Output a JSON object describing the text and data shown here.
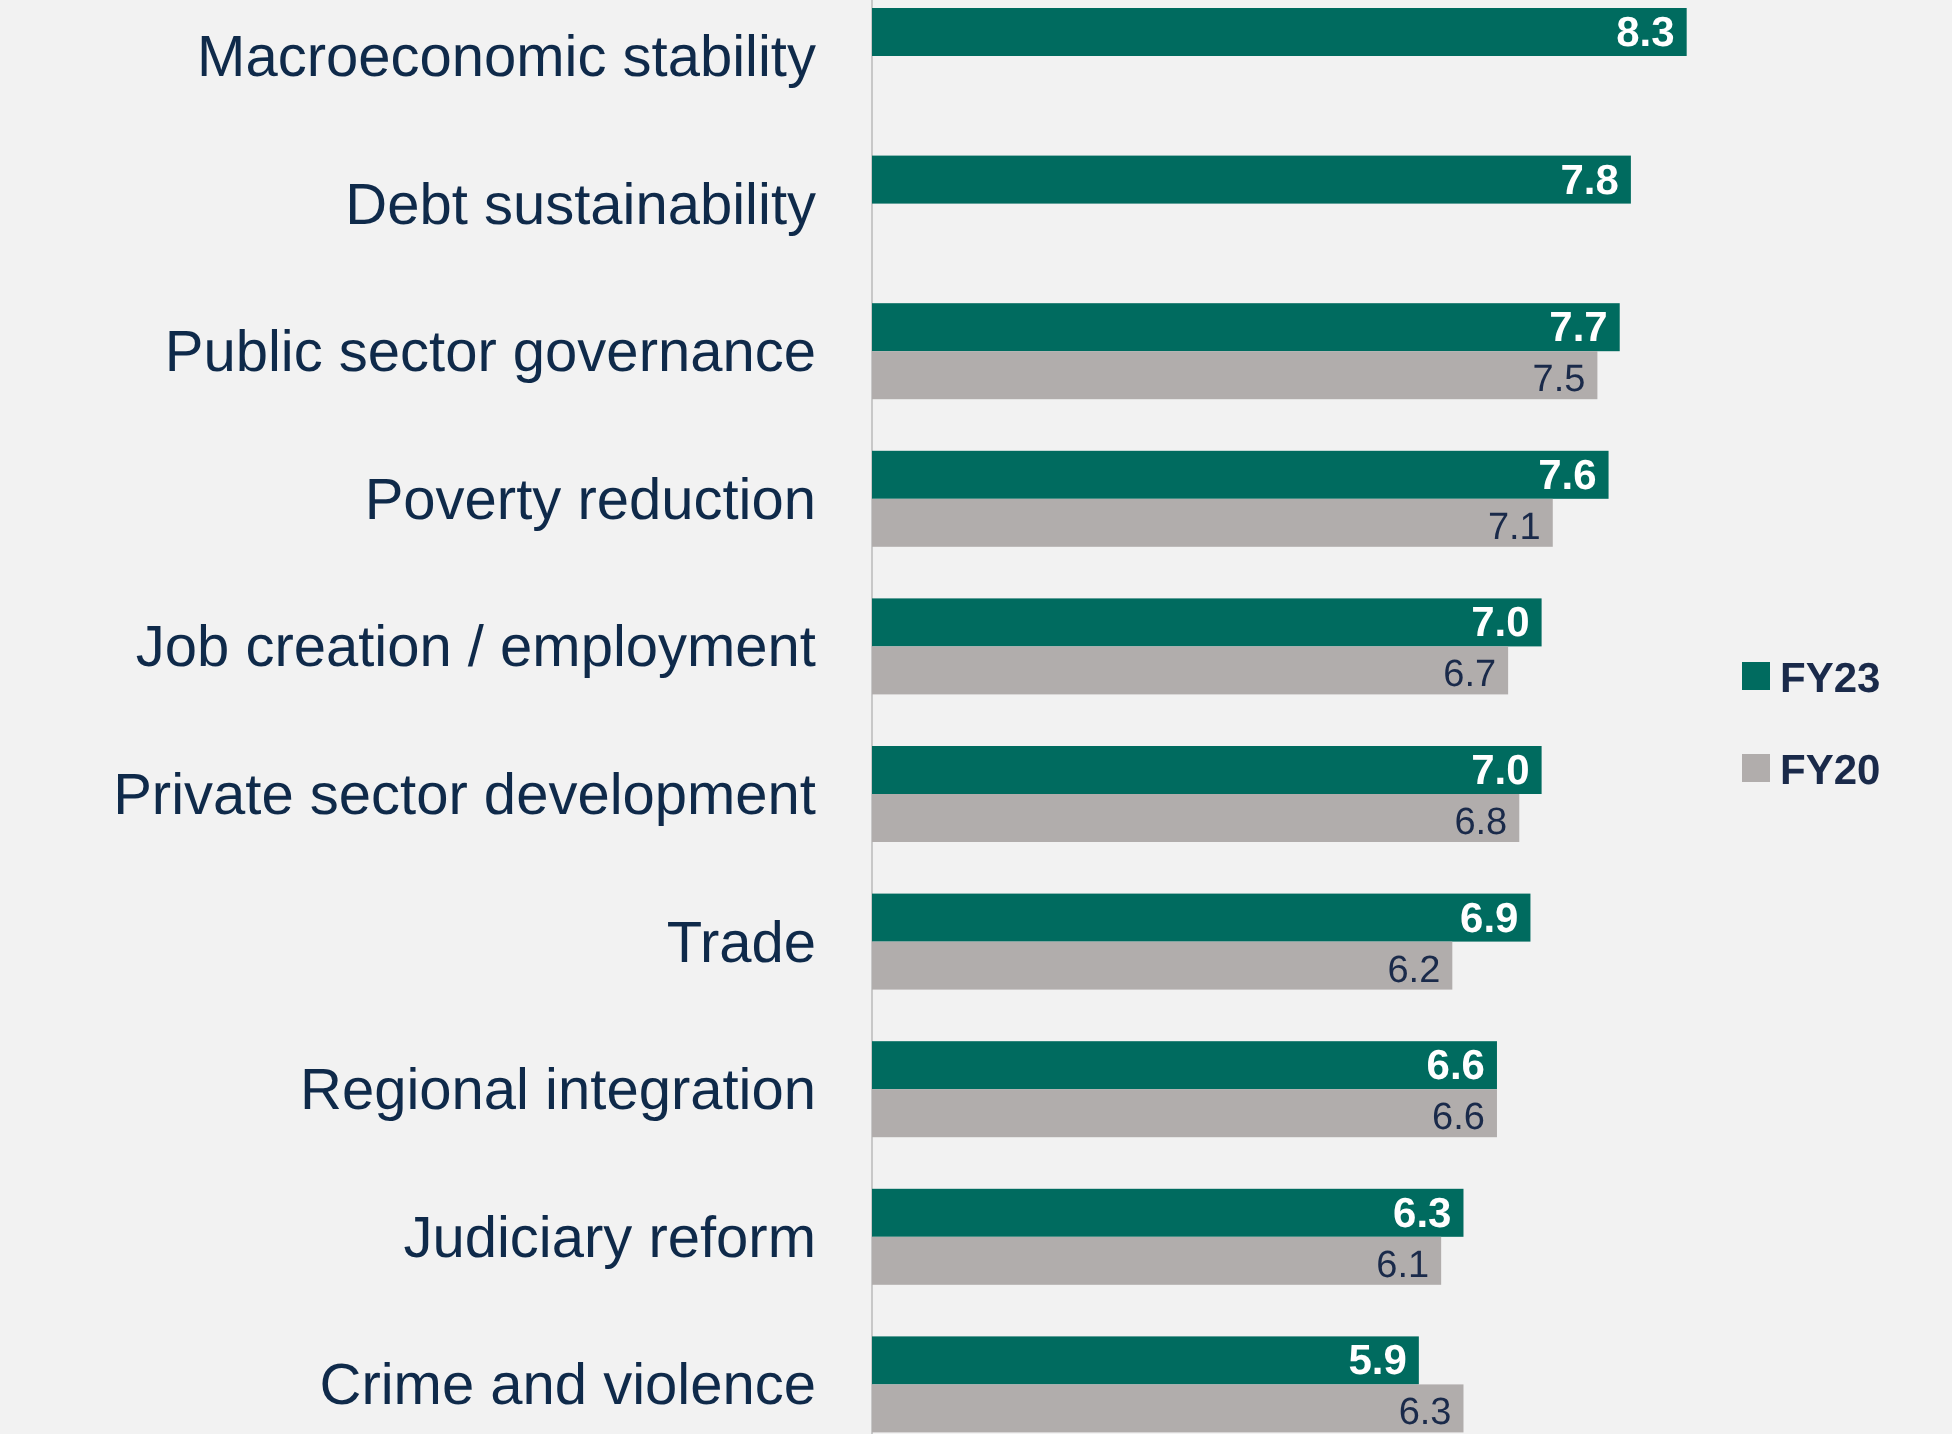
{
  "chart_data": {
    "type": "bar",
    "orientation": "horizontal",
    "categories": [
      "Macroeconomic stability",
      "Debt sustainability",
      "Public sector governance",
      "Poverty reduction",
      "Job creation / employment",
      "Private sector development",
      "Trade",
      "Regional integration",
      "Judiciary reform",
      "Crime and violence"
    ],
    "series": [
      {
        "name": "FY23",
        "color": "#006b5f",
        "values": [
          8.3,
          7.8,
          7.7,
          7.6,
          7.0,
          7.0,
          6.9,
          6.6,
          6.3,
          5.9
        ],
        "value_labels": [
          "8.3",
          "7.8",
          "7.7",
          "7.6",
          "7.0",
          "7.0",
          "6.9",
          "6.6",
          "6.3",
          "5.9"
        ]
      },
      {
        "name": "FY20",
        "color": "#b1adac",
        "values": [
          null,
          null,
          7.5,
          7.1,
          6.7,
          6.8,
          6.2,
          6.6,
          6.1,
          6.3
        ],
        "value_labels": [
          null,
          null,
          "7.5",
          "7.1",
          "6.7",
          "6.8",
          "6.2",
          "6.6",
          "6.1",
          "6.3"
        ]
      }
    ],
    "xlim": [
      1,
      9
    ],
    "legend": "right",
    "tick_labels": "y"
  }
}
